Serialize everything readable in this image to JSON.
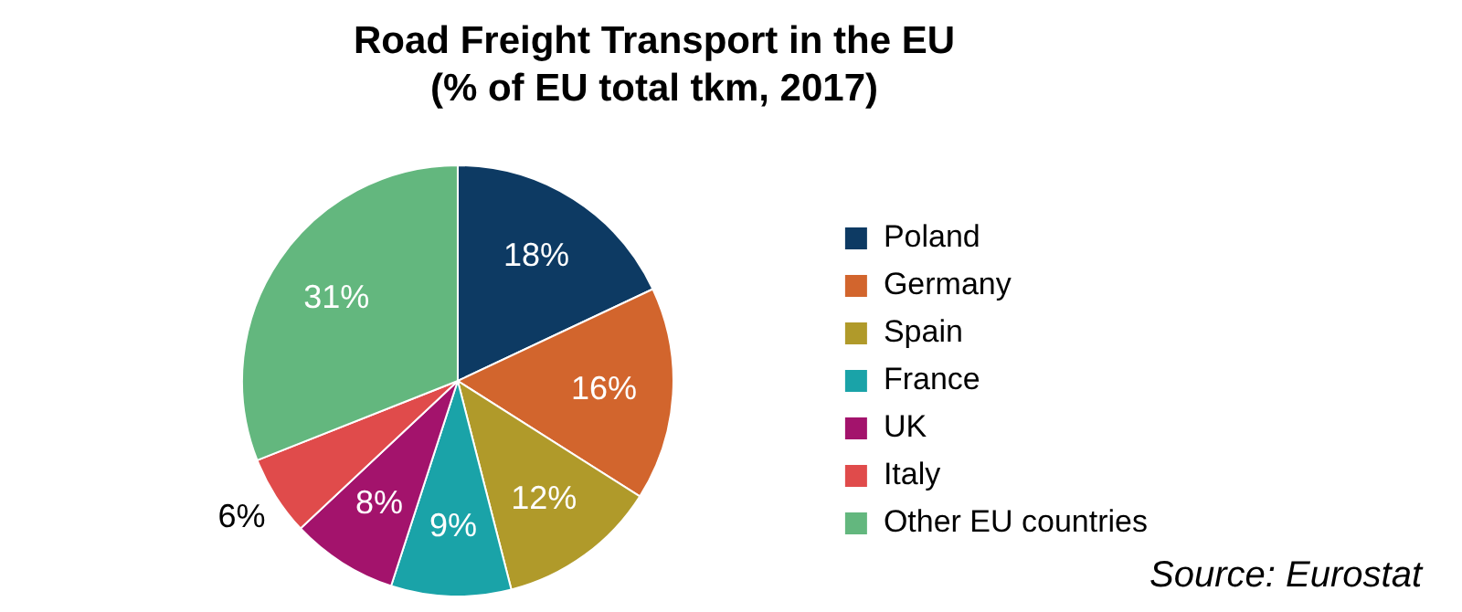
{
  "chart_data": {
    "type": "pie",
    "title": "Road Freight Transport in the EU",
    "subtitle": "(% of EU total tkm, 2017)",
    "categories": [
      "Poland",
      "Germany",
      "Spain",
      "France",
      "UK",
      "Italy",
      "Other EU countries"
    ],
    "values": [
      18,
      16,
      12,
      9,
      8,
      6,
      31
    ],
    "colors": [
      "#0d3a63",
      "#d2652d",
      "#b09a2a",
      "#1aa3a8",
      "#a3136c",
      "#e04b4b",
      "#63b77e"
    ],
    "value_labels": [
      "18%",
      "16%",
      "12%",
      "9%",
      "8%",
      "6%",
      "31%"
    ],
    "legend": "right",
    "annotations": [
      "Source: Eurostat"
    ]
  }
}
